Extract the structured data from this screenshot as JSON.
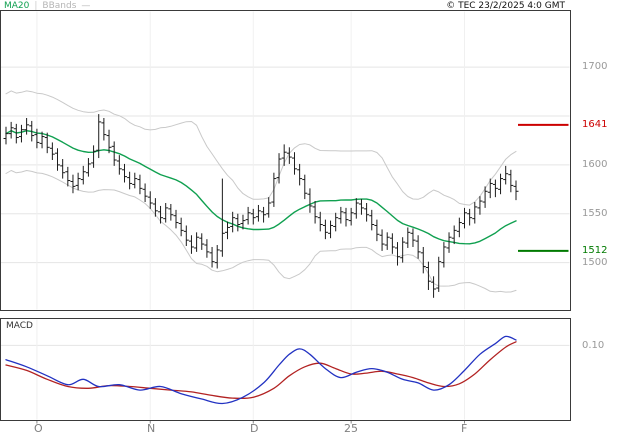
{
  "header": {
    "legend": {
      "ma20": "MA20",
      "separator": "|",
      "bbands": "BBands",
      "dash": "—"
    },
    "copyright": "© TEC 23/2/2025 4:0 GMT"
  },
  "price_axis": {
    "tick_labels": [
      "1700",
      "1600",
      "1550",
      "1500"
    ],
    "gridline_values": [
      1700,
      1650,
      1600,
      1550,
      1500
    ]
  },
  "levels": {
    "resistance": {
      "label": "1641",
      "value": 1641,
      "color": "#cc0000"
    },
    "support": {
      "label": "1512",
      "value": 1512,
      "color": "#007a00"
    }
  },
  "macd_panel": {
    "label": "MACD",
    "tick_label": "0.10",
    "tick_value": 0.1
  },
  "x_axis": {
    "labels": [
      "O",
      "N",
      "D",
      "25",
      "F"
    ],
    "month_start_indices": [
      6,
      28,
      48,
      67,
      89
    ]
  },
  "chart_data": {
    "type": "candlestick",
    "title": "",
    "indicators": [
      "MA20",
      "BollingerBands(20,2)",
      "MACD"
    ],
    "ylim_main": [
      1451,
      1758
    ],
    "ylim_macd": [
      -0.32,
      0.25
    ],
    "bars_ohlc": [
      [
        1627,
        1639,
        1621,
        1632
      ],
      [
        1632,
        1644,
        1627,
        1638
      ],
      [
        1637,
        1642,
        1622,
        1628
      ],
      [
        1629,
        1641,
        1623,
        1636
      ],
      [
        1636,
        1648,
        1631,
        1641
      ],
      [
        1640,
        1645,
        1624,
        1630
      ],
      [
        1631,
        1637,
        1617,
        1623
      ],
      [
        1622,
        1634,
        1617,
        1629
      ],
      [
        1628,
        1633,
        1612,
        1618
      ],
      [
        1617,
        1623,
        1605,
        1611
      ],
      [
        1612,
        1617,
        1594,
        1600
      ],
      [
        1599,
        1606,
        1586,
        1592
      ],
      [
        1593,
        1598,
        1578,
        1584
      ],
      [
        1583,
        1590,
        1571,
        1578
      ],
      [
        1579,
        1592,
        1574,
        1586
      ],
      [
        1585,
        1599,
        1580,
        1593
      ],
      [
        1592,
        1607,
        1588,
        1601
      ],
      [
        1602,
        1620,
        1597,
        1614
      ],
      [
        1615,
        1652,
        1607,
        1644
      ],
      [
        1643,
        1648,
        1625,
        1631
      ],
      [
        1630,
        1636,
        1612,
        1618
      ],
      [
        1619,
        1624,
        1599,
        1605
      ],
      [
        1604,
        1610,
        1590,
        1596
      ],
      [
        1595,
        1601,
        1582,
        1588
      ],
      [
        1587,
        1593,
        1575,
        1581
      ],
      [
        1580,
        1592,
        1576,
        1586
      ],
      [
        1585,
        1590,
        1570,
        1576
      ],
      [
        1575,
        1581,
        1562,
        1568
      ],
      [
        1567,
        1573,
        1555,
        1561
      ],
      [
        1560,
        1566,
        1547,
        1553
      ],
      [
        1552,
        1558,
        1540,
        1546
      ],
      [
        1545,
        1561,
        1541,
        1556
      ],
      [
        1555,
        1560,
        1543,
        1549
      ],
      [
        1548,
        1554,
        1535,
        1541
      ],
      [
        1540,
        1546,
        1527,
        1533
      ],
      [
        1532,
        1538,
        1517,
        1523
      ],
      [
        1522,
        1528,
        1509,
        1516
      ],
      [
        1515,
        1531,
        1511,
        1526
      ],
      [
        1525,
        1530,
        1513,
        1519
      ],
      [
        1518,
        1524,
        1505,
        1511
      ],
      [
        1510,
        1516,
        1495,
        1501
      ],
      [
        1500,
        1518,
        1494,
        1513
      ],
      [
        1512,
        1586,
        1506,
        1530
      ],
      [
        1531,
        1542,
        1524,
        1536
      ],
      [
        1537,
        1552,
        1531,
        1546
      ],
      [
        1545,
        1550,
        1532,
        1539
      ],
      [
        1540,
        1549,
        1534,
        1543
      ],
      [
        1544,
        1557,
        1539,
        1551
      ],
      [
        1550,
        1555,
        1539,
        1546
      ],
      [
        1547,
        1559,
        1542,
        1553
      ],
      [
        1552,
        1557,
        1541,
        1549
      ],
      [
        1550,
        1567,
        1546,
        1561
      ],
      [
        1562,
        1592,
        1557,
        1586
      ],
      [
        1587,
        1612,
        1581,
        1606
      ],
      [
        1607,
        1621,
        1599,
        1613
      ],
      [
        1612,
        1618,
        1601,
        1608
      ],
      [
        1607,
        1613,
        1590,
        1596
      ],
      [
        1595,
        1601,
        1579,
        1586
      ],
      [
        1585,
        1590,
        1565,
        1571
      ],
      [
        1570,
        1576,
        1551,
        1558
      ],
      [
        1557,
        1563,
        1540,
        1547
      ],
      [
        1546,
        1552,
        1532,
        1539
      ],
      [
        1538,
        1544,
        1524,
        1531
      ],
      [
        1530,
        1543,
        1525,
        1538
      ],
      [
        1537,
        1551,
        1532,
        1546
      ],
      [
        1545,
        1557,
        1540,
        1552
      ],
      [
        1551,
        1556,
        1537,
        1544
      ],
      [
        1543,
        1556,
        1538,
        1551
      ],
      [
        1550,
        1566,
        1545,
        1561
      ],
      [
        1560,
        1565,
        1549,
        1556
      ],
      [
        1555,
        1561,
        1542,
        1549
      ],
      [
        1548,
        1554,
        1533,
        1539
      ],
      [
        1538,
        1544,
        1522,
        1529
      ],
      [
        1528,
        1534,
        1512,
        1519
      ],
      [
        1518,
        1531,
        1513,
        1526
      ],
      [
        1525,
        1530,
        1509,
        1516
      ],
      [
        1515,
        1521,
        1497,
        1506
      ],
      [
        1505,
        1526,
        1500,
        1521
      ],
      [
        1520,
        1536,
        1515,
        1531
      ],
      [
        1530,
        1535,
        1516,
        1523
      ],
      [
        1522,
        1528,
        1504,
        1511
      ],
      [
        1510,
        1516,
        1489,
        1496
      ],
      [
        1495,
        1501,
        1472,
        1481
      ],
      [
        1480,
        1486,
        1464,
        1473
      ],
      [
        1474,
        1506,
        1470,
        1501
      ],
      [
        1500,
        1521,
        1495,
        1516
      ],
      [
        1515,
        1531,
        1510,
        1526
      ],
      [
        1525,
        1538,
        1519,
        1533
      ],
      [
        1532,
        1546,
        1526,
        1541
      ],
      [
        1540,
        1556,
        1535,
        1551
      ],
      [
        1550,
        1555,
        1538,
        1546
      ],
      [
        1545,
        1562,
        1540,
        1557
      ],
      [
        1556,
        1568,
        1549,
        1563
      ],
      [
        1562,
        1578,
        1556,
        1573
      ],
      [
        1572,
        1586,
        1566,
        1581
      ],
      [
        1580,
        1585,
        1567,
        1576
      ],
      [
        1575,
        1591,
        1570,
        1586
      ],
      [
        1585,
        1599,
        1580,
        1591
      ],
      [
        1590,
        1595,
        1572,
        1579
      ],
      [
        1578,
        1584,
        1564,
        1573
      ]
    ],
    "overlays": {
      "ma_window": 20,
      "bbands_window": 20,
      "bbands_k": 2
    },
    "macd": {
      "blue": [
        [
          0,
          0.02
        ],
        [
          4,
          -0.02
        ],
        [
          8,
          -0.07
        ],
        [
          12,
          -0.12
        ],
        [
          15,
          -0.09
        ],
        [
          18,
          -0.13
        ],
        [
          22,
          -0.12
        ],
        [
          26,
          -0.15
        ],
        [
          30,
          -0.13
        ],
        [
          34,
          -0.17
        ],
        [
          38,
          -0.2
        ],
        [
          42,
          -0.225
        ],
        [
          46,
          -0.19
        ],
        [
          50,
          -0.11
        ],
        [
          53,
          -0.01
        ],
        [
          55,
          0.05
        ],
        [
          57,
          0.08
        ],
        [
          59,
          0.05
        ],
        [
          62,
          -0.03
        ],
        [
          65,
          -0.08
        ],
        [
          68,
          -0.05
        ],
        [
          71,
          -0.03
        ],
        [
          74,
          -0.05
        ],
        [
          77,
          -0.09
        ],
        [
          80,
          -0.11
        ],
        [
          83,
          -0.15
        ],
        [
          86,
          -0.12
        ],
        [
          89,
          -0.04
        ],
        [
          92,
          0.05
        ],
        [
          95,
          0.11
        ],
        [
          97,
          0.15
        ],
        [
          99,
          0.13
        ]
      ],
      "red": [
        [
          0,
          -0.01
        ],
        [
          4,
          -0.04
        ],
        [
          8,
          -0.09
        ],
        [
          12,
          -0.13
        ],
        [
          16,
          -0.14
        ],
        [
          20,
          -0.125
        ],
        [
          24,
          -0.13
        ],
        [
          28,
          -0.14
        ],
        [
          32,
          -0.15
        ],
        [
          36,
          -0.16
        ],
        [
          40,
          -0.18
        ],
        [
          44,
          -0.195
        ],
        [
          48,
          -0.19
        ],
        [
          52,
          -0.14
        ],
        [
          55,
          -0.07
        ],
        [
          58,
          -0.02
        ],
        [
          61,
          0
        ],
        [
          64,
          -0.03
        ],
        [
          67,
          -0.06
        ],
        [
          70,
          -0.055
        ],
        [
          73,
          -0.045
        ],
        [
          76,
          -0.06
        ],
        [
          79,
          -0.08
        ],
        [
          82,
          -0.11
        ],
        [
          85,
          -0.13
        ],
        [
          88,
          -0.115
        ],
        [
          91,
          -0.06
        ],
        [
          94,
          0.02
        ],
        [
          97,
          0.09
        ],
        [
          99,
          0.12
        ]
      ]
    },
    "colors": {
      "ma20": "#10a050",
      "bbands": "#c9c9c9",
      "bars": "#1a1a1a",
      "macd_blue": "#2232c2",
      "macd_red": "#b22222",
      "grid": "#e5e5e5",
      "month_grid": "#f0f0f0",
      "border": "#3a3a3a",
      "resistance": "#cc0000",
      "support": "#007a00",
      "axis_text": "#999999"
    }
  }
}
